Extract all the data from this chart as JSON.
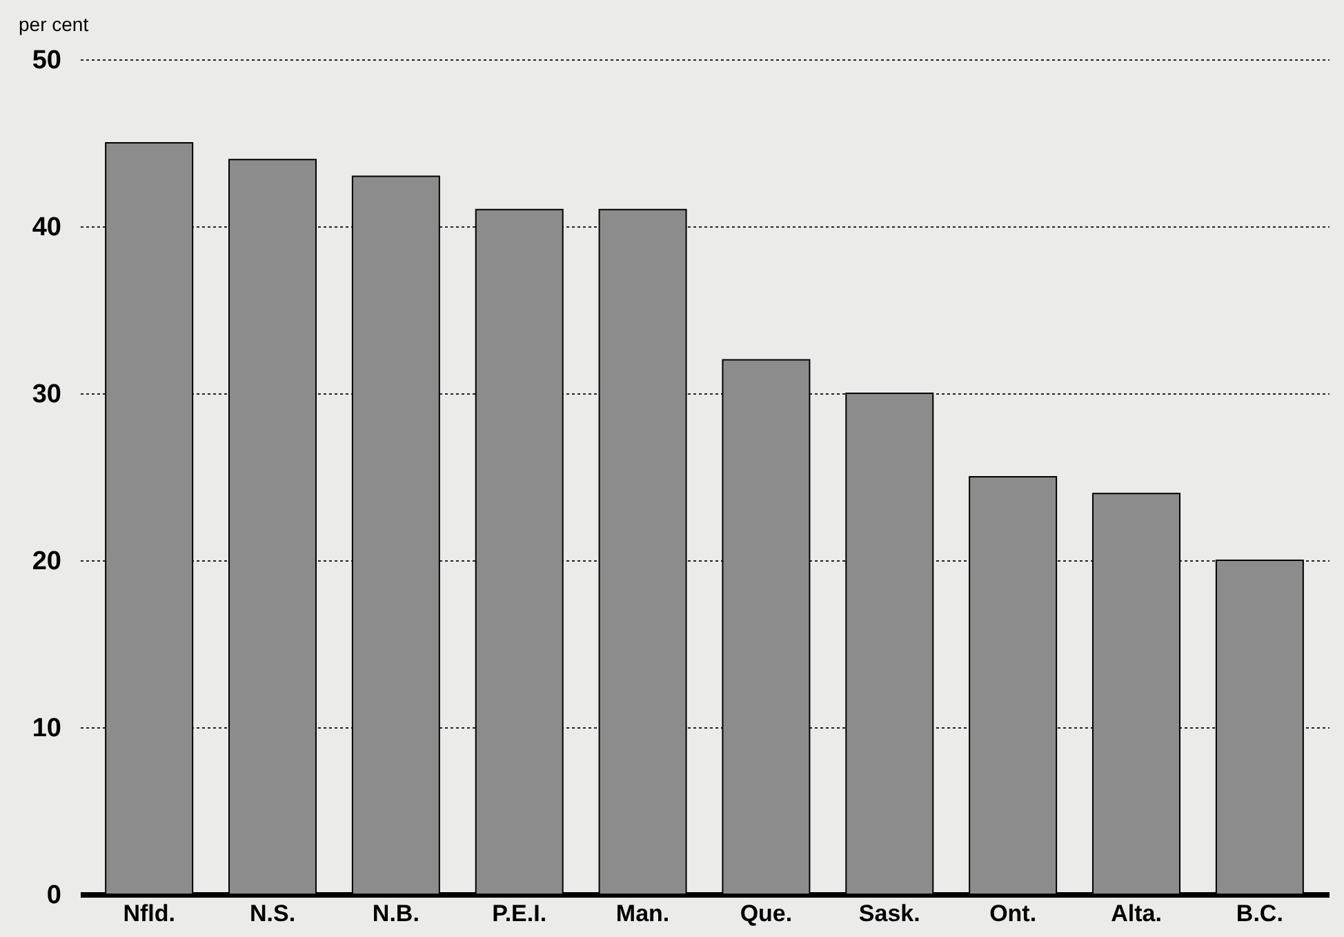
{
  "chart_data": {
    "type": "bar",
    "ylabel": "per cent",
    "categories": [
      "Nfld.",
      "N.S.",
      "N.B.",
      "P.E.I.",
      "Man.",
      "Que.",
      "Sask.",
      "Ont.",
      "Alta.",
      "B.C."
    ],
    "values": [
      45,
      44,
      43,
      41,
      41,
      32,
      30,
      25,
      24,
      20
    ],
    "color": "#8c8c8c",
    "ylim": [
      0,
      50
    ],
    "yticks": [
      0,
      10,
      20,
      30,
      40,
      50
    ],
    "grid": "y"
  }
}
